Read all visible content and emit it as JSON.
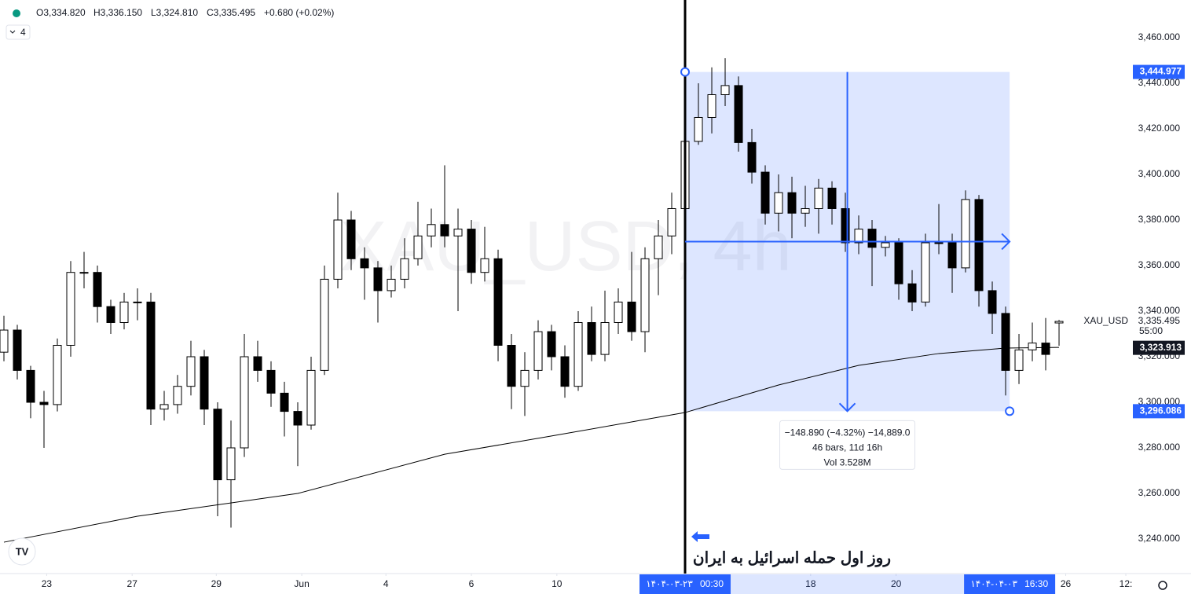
{
  "header": {
    "symbol_dot": "",
    "open": "O3,334.820",
    "high": "H3,336.150",
    "low": "L3,324.810",
    "close": "C3,335.495",
    "change": "+0.680 (+0.02%)",
    "indicators": "4"
  },
  "chart_data": {
    "type": "candlestick",
    "watermark": "XAU_USD, 4h",
    "xlim": [
      -0.294,
      84.41
    ],
    "ylim": [
      3224.83,
      3476.55
    ],
    "xticks": [
      {
        "value": 3.2,
        "label": "23"
      },
      {
        "value": 9.6,
        "label": "27"
      },
      {
        "value": 15.9,
        "label": "29"
      },
      {
        "value": 22.3,
        "label": "Jun"
      },
      {
        "value": 28.6,
        "label": "4"
      },
      {
        "value": 35,
        "label": "6"
      },
      {
        "value": 41.4,
        "label": "10"
      },
      {
        "value": 60.4,
        "label": "18"
      },
      {
        "value": 66.8,
        "label": "20"
      },
      {
        "value": 79.5,
        "label": "26"
      },
      {
        "value": 84,
        "label": "12:"
      }
    ],
    "yticks": [
      {
        "value": 3240,
        "label": "3,240.000"
      },
      {
        "value": 3260,
        "label": "3,260.000"
      },
      {
        "value": 3280,
        "label": "3,280.000"
      },
      {
        "value": 3300,
        "label": "3,300.000"
      },
      {
        "value": 3320,
        "label": "3,320.000"
      },
      {
        "value": 3340,
        "label": "3,340.000"
      },
      {
        "value": 3360,
        "label": "3,360.000"
      },
      {
        "value": 3380,
        "label": "3,380.000"
      },
      {
        "value": 3400,
        "label": "3,400.000"
      },
      {
        "value": 3420,
        "label": "3,420.000"
      },
      {
        "value": 3440,
        "label": "3,440.000"
      },
      {
        "value": 3460,
        "label": "3,460.000"
      }
    ],
    "up_color": "#ffffff",
    "down_color": "#000000",
    "border_color": "#000000",
    "open": [
      3322,
      3331.7,
      3314,
      3300,
      3299,
      3325,
      3357,
      3357,
      3342,
      3335,
      3344,
      3344,
      3297,
      3299,
      3307,
      3320,
      3297,
      3266,
      3280,
      3320,
      3314,
      3304,
      3296,
      3290,
      3314,
      3354,
      3380,
      3363,
      3359,
      3349,
      3354,
      3363,
      3373,
      3378,
      3373,
      3376,
      3357,
      3363,
      3325,
      3307,
      3314,
      3331,
      3320,
      3307,
      3335,
      3321,
      3335,
      3344,
      3331,
      3363,
      3373,
      3385,
      3414.5,
      3425,
      3435,
      3439,
      3414,
      3401,
      3383,
      3392,
      3383,
      3385,
      3394,
      3385,
      3370,
      3376,
      3368,
      3370,
      3352,
      3344,
      3370,
      3370,
      3359,
      3389,
      3349,
      3339,
      3314,
      3323,
      3326,
      3334.82
    ],
    "high": [
      3338,
      3334,
      3316,
      3305,
      3328,
      3362,
      3366,
      3360,
      3345,
      3348,
      3350,
      3348,
      3305,
      3312,
      3327,
      3323,
      3300,
      3292,
      3330,
      3327,
      3318,
      3309,
      3300,
      3320,
      3360,
      3392,
      3384,
      3368,
      3362,
      3360,
      3372,
      3388,
      3385,
      3404,
      3385,
      3380,
      3377,
      3367,
      3330,
      3322,
      3336,
      3334,
      3325,
      3340,
      3342,
      3349,
      3350,
      3366,
      3368,
      3380,
      3392,
      3419,
      3440,
      3447,
      3451,
      3443,
      3420,
      3404,
      3400,
      3399,
      3395,
      3398,
      3397,
      3392,
      3382,
      3380,
      3373,
      3372,
      3358,
      3374,
      3387,
      3374,
      3393,
      3391,
      3353,
      3342,
      3330,
      3335,
      3337,
      3336.15
    ],
    "low": [
      3318,
      3310,
      3293,
      3280,
      3296,
      3320,
      3350,
      3335,
      3330,
      3332,
      3336,
      3290,
      3292,
      3295,
      3303,
      3290,
      3250,
      3245,
      3276,
      3309,
      3298,
      3285,
      3272,
      3288,
      3312,
      3350,
      3358,
      3345,
      3335,
      3346,
      3350,
      3360,
      3368,
      3368,
      3340,
      3352,
      3353,
      3318,
      3297,
      3294,
      3310,
      3314,
      3302,
      3305,
      3318,
      3318,
      3330,
      3327,
      3322,
      3347,
      3365,
      3383,
      3413,
      3418,
      3430,
      3410,
      3396,
      3378,
      3375,
      3372,
      3377,
      3374,
      3378,
      3366,
      3365,
      3351,
      3364,
      3345,
      3340,
      3342,
      3365,
      3348,
      3357,
      3342,
      3330,
      3303,
      3308,
      3318,
      3314,
      3324.81
    ],
    "close": [
      3331.7,
      3314,
      3300,
      3299,
      3325,
      3357,
      3357,
      3342,
      3335,
      3344,
      3344,
      3297,
      3299,
      3307,
      3320,
      3297,
      3266,
      3280,
      3320,
      3314,
      3304,
      3296,
      3290,
      3314,
      3354,
      3380,
      3363,
      3359,
      3349,
      3354,
      3363,
      3373,
      3378,
      3373,
      3376,
      3357,
      3363,
      3325,
      3307,
      3314,
      3331,
      3320,
      3307,
      3335,
      3321,
      3335,
      3344,
      3331,
      3363,
      3373,
      3385,
      3414.5,
      3425,
      3435,
      3439,
      3414,
      3401,
      3383,
      3392,
      3383,
      3385,
      3394,
      3385,
      3370,
      3376,
      3368,
      3370,
      3352,
      3344,
      3370,
      3370,
      3359,
      3389,
      3349,
      3339,
      3314,
      3323,
      3326,
      3321,
      3335.495
    ],
    "ma": {
      "color": "#000000",
      "x": [
        0,
        10,
        22,
        33,
        41,
        51,
        58,
        64,
        70,
        75,
        79
      ],
      "values": [
        3238.6,
        3250,
        3260,
        3277.2,
        3285.2,
        3295.5,
        3307.6,
        3316.2,
        3321.4,
        3323.8,
        3324.1
      ]
    },
    "range": {
      "x_start": 51,
      "x_end": 75.3,
      "high": {
        "value": 3444.977,
        "label": "3,444.977"
      },
      "low": {
        "value": 3296.086,
        "label": "3,296.086"
      },
      "color": "#2962ff",
      "stats": [
        "−148.890 (−4.32%) −14,889.0",
        "46 bars, 11d 16h",
        "Vol 3.528M"
      ],
      "start_date": "۱۴۰۴-۰۳-۲۳",
      "start_time": "00:30",
      "end_date": "۱۴۰۴-۰۴-۰۳",
      "end_time": "16:30"
    },
    "last_price": {
      "symbol": "XAU_USD",
      "value": {
        "value": 3335.495,
        "label": "3,335.495"
      },
      "countdown": "55:00"
    },
    "ma_price": {
      "value": 3323.913,
      "label": "3,323.913"
    },
    "annotation": "روز اول حمله اسرائیل به ایران"
  }
}
